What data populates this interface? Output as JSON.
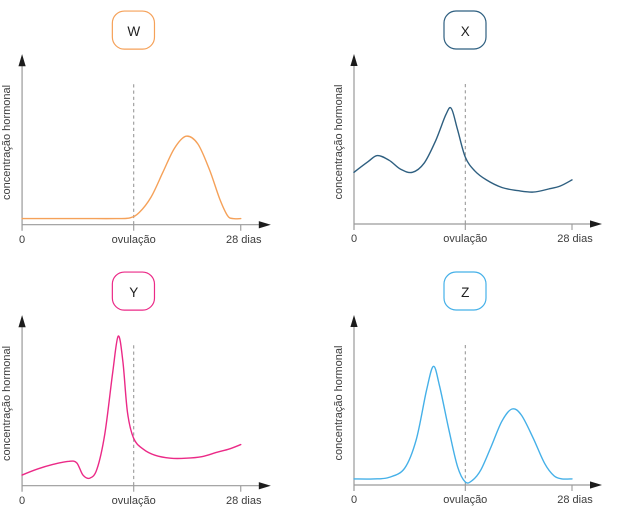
{
  "figure": {
    "background": "#ffffff",
    "description_visible_text_only": true
  },
  "axis": {
    "y_label": "concentração hormonal",
    "x_start_label": "0",
    "x_mid_label": "ovulação",
    "x_end_label": "28 dias",
    "line_color": "#9a9a9a",
    "dash_color": "#8f8f8f",
    "text_color": "#3c3c3c",
    "arrow_color": "#1c1c1c"
  },
  "chart_data": [
    {
      "type": "line",
      "label": "W",
      "position": "top-left",
      "color": "#f5a159",
      "xlabel_ticks": [
        "0",
        "ovulação",
        "28 dias"
      ],
      "x_range_days": [
        0,
        28
      ],
      "ovulation_day": 14.3,
      "ylabel": "concentração hormonal",
      "ylim": [
        0,
        100
      ],
      "points": [
        [
          0,
          4
        ],
        [
          4,
          4
        ],
        [
          8,
          4
        ],
        [
          12,
          4
        ],
        [
          13.8,
          4.5
        ],
        [
          15,
          8
        ],
        [
          16.5,
          18
        ],
        [
          18,
          34
        ],
        [
          19.5,
          50
        ],
        [
          21,
          58
        ],
        [
          22.5,
          53
        ],
        [
          24,
          36
        ],
        [
          25.3,
          17
        ],
        [
          26.3,
          6
        ],
        [
          27,
          4
        ],
        [
          28,
          4
        ]
      ]
    },
    {
      "type": "line",
      "label": "X",
      "position": "top-right",
      "color": "#2e5f80",
      "xlabel_ticks": [
        "0",
        "ovulação",
        "28 dias"
      ],
      "x_range_days": [
        0,
        28
      ],
      "ovulation_day": 14.3,
      "ylabel": "concentração hormonal",
      "ylim": [
        0,
        100
      ],
      "points": [
        [
          0,
          34
        ],
        [
          1.8,
          41
        ],
        [
          3,
          45
        ],
        [
          4.5,
          42
        ],
        [
          6,
          36
        ],
        [
          7.5,
          34
        ],
        [
          9,
          40
        ],
        [
          10.5,
          55
        ],
        [
          11.8,
          72
        ],
        [
          12.5,
          76
        ],
        [
          13.3,
          62
        ],
        [
          14.3,
          44
        ],
        [
          15.5,
          35
        ],
        [
          17,
          29
        ],
        [
          19,
          24
        ],
        [
          21,
          22
        ],
        [
          23,
          21
        ],
        [
          25,
          23
        ],
        [
          26.5,
          25
        ],
        [
          28,
          29
        ]
      ]
    },
    {
      "type": "line",
      "label": "Y",
      "position": "bottom-left",
      "color": "#eb2a87",
      "xlabel_ticks": [
        "0",
        "ovulação",
        "28 dias"
      ],
      "x_range_days": [
        0,
        28
      ],
      "ovulation_day": 14.3,
      "ylabel": "concentração hormonal",
      "ylim": [
        0,
        100
      ],
      "points": [
        [
          0,
          7
        ],
        [
          2,
          11
        ],
        [
          4,
          14
        ],
        [
          6,
          16
        ],
        [
          7,
          15
        ],
        [
          7.8,
          7
        ],
        [
          8.7,
          5
        ],
        [
          9.6,
          11
        ],
        [
          10.6,
          34
        ],
        [
          11.6,
          74
        ],
        [
          12.3,
          98
        ],
        [
          12.9,
          82
        ],
        [
          13.5,
          48
        ],
        [
          14.3,
          31
        ],
        [
          15.5,
          24
        ],
        [
          17,
          20
        ],
        [
          19,
          18
        ],
        [
          21,
          18
        ],
        [
          23,
          19
        ],
        [
          25,
          22
        ],
        [
          26.5,
          24
        ],
        [
          28,
          27
        ]
      ]
    },
    {
      "type": "line",
      "label": "Z",
      "position": "bottom-right",
      "color": "#45b0e8",
      "xlabel_ticks": [
        "0",
        "ovulação",
        "28 dias"
      ],
      "x_range_days": [
        0,
        28
      ],
      "ovulation_day": 14.3,
      "ylabel": "concentração hormonal",
      "ylim": [
        0,
        100
      ],
      "points": [
        [
          0,
          4
        ],
        [
          2.5,
          4
        ],
        [
          4.5,
          5
        ],
        [
          6.5,
          11
        ],
        [
          8,
          30
        ],
        [
          9.3,
          62
        ],
        [
          10.2,
          78
        ],
        [
          11,
          65
        ],
        [
          12.2,
          36
        ],
        [
          13.3,
          12
        ],
        [
          14.3,
          2
        ],
        [
          15.2,
          3
        ],
        [
          16.3,
          10
        ],
        [
          17.6,
          25
        ],
        [
          19,
          42
        ],
        [
          20.3,
          50
        ],
        [
          21.5,
          46
        ],
        [
          23,
          31
        ],
        [
          24.5,
          14
        ],
        [
          25.7,
          6
        ],
        [
          26.7,
          4
        ],
        [
          28,
          4
        ]
      ]
    }
  ]
}
